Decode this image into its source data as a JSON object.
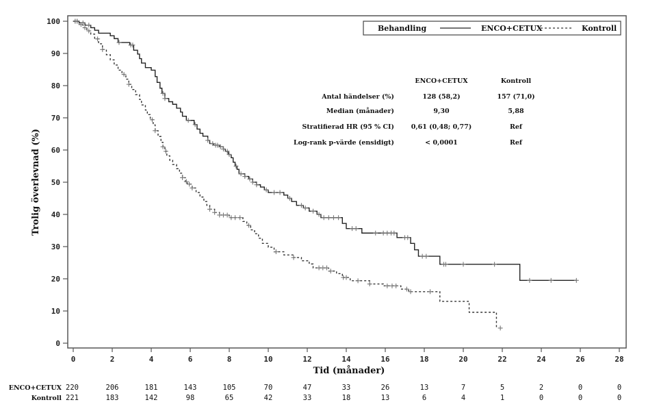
{
  "chart_data": {
    "type": "line",
    "subtype": "kaplan-meier",
    "title": "",
    "xlabel": "Tid (månader)",
    "ylabel": "Trolig överlevnad (%)",
    "xlim": [
      0,
      28
    ],
    "ylim": [
      0,
      100
    ],
    "xticks": [
      0,
      2,
      4,
      6,
      8,
      10,
      12,
      14,
      16,
      18,
      20,
      22,
      24,
      26,
      28
    ],
    "yticks": [
      0,
      10,
      20,
      30,
      40,
      50,
      60,
      70,
      80,
      90,
      100
    ],
    "grid": false,
    "legend": {
      "placement": "top-right",
      "title": "Behandling",
      "entries": [
        {
          "label": "ENCO+CETUX",
          "style": "solid"
        },
        {
          "label": "Kontroll",
          "style": "dashed"
        }
      ]
    },
    "series": [
      {
        "name": "ENCO+CETUX",
        "style": "solid",
        "color": "#222222",
        "steps": [
          [
            0,
            100
          ],
          [
            0.3,
            99.5
          ],
          [
            0.6,
            98.8
          ],
          [
            0.9,
            98.0
          ],
          [
            1.1,
            97.2
          ],
          [
            1.3,
            96.3
          ],
          [
            1.9,
            95.5
          ],
          [
            2.1,
            94.6
          ],
          [
            2.3,
            93.4
          ],
          [
            2.9,
            92.6
          ],
          [
            3.1,
            91.0
          ],
          [
            3.3,
            89.8
          ],
          [
            3.4,
            88.4
          ],
          [
            3.5,
            87.0
          ],
          [
            3.7,
            85.6
          ],
          [
            4.0,
            84.8
          ],
          [
            4.2,
            82.8
          ],
          [
            4.3,
            81.0
          ],
          [
            4.45,
            79.2
          ],
          [
            4.55,
            77.6
          ],
          [
            4.7,
            76.0
          ],
          [
            4.9,
            75.0
          ],
          [
            5.1,
            74.2
          ],
          [
            5.3,
            73.0
          ],
          [
            5.5,
            71.8
          ],
          [
            5.6,
            70.5
          ],
          [
            5.8,
            69.2
          ],
          [
            6.2,
            67.9
          ],
          [
            6.35,
            66.5
          ],
          [
            6.5,
            65.2
          ],
          [
            6.65,
            64.3
          ],
          [
            6.9,
            63.0
          ],
          [
            7.0,
            62.0
          ],
          [
            7.2,
            61.5
          ],
          [
            7.5,
            61.0
          ],
          [
            7.7,
            60.3
          ],
          [
            7.8,
            59.6
          ],
          [
            7.95,
            58.6
          ],
          [
            8.1,
            57.6
          ],
          [
            8.2,
            56.2
          ],
          [
            8.3,
            55.0
          ],
          [
            8.4,
            54.0
          ],
          [
            8.5,
            52.6
          ],
          [
            8.8,
            51.8
          ],
          [
            9.0,
            51.0
          ],
          [
            9.2,
            50.0
          ],
          [
            9.4,
            49.2
          ],
          [
            9.6,
            48.5
          ],
          [
            9.8,
            47.6
          ],
          [
            10.0,
            46.8
          ],
          [
            10.8,
            46.0
          ],
          [
            11.0,
            45.0
          ],
          [
            11.2,
            44.0
          ],
          [
            11.45,
            42.8
          ],
          [
            11.8,
            42.0
          ],
          [
            12.1,
            41.0
          ],
          [
            12.5,
            40.0
          ],
          [
            12.7,
            39.0
          ],
          [
            13.8,
            37.2
          ],
          [
            14.0,
            35.6
          ],
          [
            14.8,
            34.2
          ],
          [
            16.6,
            32.8
          ],
          [
            17.3,
            31.0
          ],
          [
            17.5,
            29.0
          ],
          [
            17.7,
            27.0
          ],
          [
            18.8,
            24.5
          ],
          [
            22.9,
            19.5
          ],
          [
            25.8,
            19.5
          ]
        ],
        "censor_x": [
          0.1,
          0.2,
          0.5,
          0.8,
          2.35,
          2.95,
          3.05,
          4.6,
          4.7,
          5.9,
          6.25,
          6.9,
          7.15,
          7.3,
          7.4,
          7.55,
          7.7,
          7.9,
          8.0,
          8.35,
          8.6,
          8.8,
          9.05,
          9.2,
          9.4,
          9.9,
          10.3,
          10.6,
          11.1,
          11.7,
          11.9,
          12.3,
          12.6,
          12.85,
          13.1,
          13.35,
          13.6,
          14.3,
          14.5,
          15.5,
          15.9,
          16.1,
          16.3,
          16.45,
          17.0,
          17.15,
          17.9,
          18.1,
          19.0,
          19.1,
          20.0,
          21.6,
          23.4,
          24.5,
          25.8
        ]
      },
      {
        "name": "Kontroll",
        "style": "dashed",
        "color": "#333333",
        "steps": [
          [
            0,
            100
          ],
          [
            0.3,
            99.0
          ],
          [
            0.5,
            98.0
          ],
          [
            0.7,
            97.0
          ],
          [
            0.9,
            96.0
          ],
          [
            1.1,
            94.5
          ],
          [
            1.3,
            93.0
          ],
          [
            1.5,
            91.2
          ],
          [
            1.7,
            89.6
          ],
          [
            1.9,
            88.0
          ],
          [
            2.1,
            86.4
          ],
          [
            2.3,
            84.8
          ],
          [
            2.5,
            83.5
          ],
          [
            2.7,
            82.0
          ],
          [
            2.85,
            80.4
          ],
          [
            3.0,
            78.8
          ],
          [
            3.2,
            77.2
          ],
          [
            3.4,
            75.7
          ],
          [
            3.5,
            74.0
          ],
          [
            3.7,
            72.4
          ],
          [
            3.8,
            71.0
          ],
          [
            3.95,
            69.4
          ],
          [
            4.1,
            67.8
          ],
          [
            4.2,
            66.0
          ],
          [
            4.35,
            64.2
          ],
          [
            4.5,
            62.4
          ],
          [
            4.6,
            61.0
          ],
          [
            4.7,
            59.6
          ],
          [
            4.8,
            58.2
          ],
          [
            4.95,
            56.8
          ],
          [
            5.1,
            55.5
          ],
          [
            5.3,
            54.2
          ],
          [
            5.45,
            52.8
          ],
          [
            5.6,
            51.4
          ],
          [
            5.75,
            50.2
          ],
          [
            5.85,
            49.4
          ],
          [
            6.1,
            48.2
          ],
          [
            6.3,
            46.8
          ],
          [
            6.5,
            45.4
          ],
          [
            6.7,
            44.0
          ],
          [
            6.85,
            42.8
          ],
          [
            7.0,
            41.6
          ],
          [
            7.25,
            40.6
          ],
          [
            7.5,
            39.8
          ],
          [
            8.0,
            39.0
          ],
          [
            8.7,
            37.8
          ],
          [
            8.9,
            36.6
          ],
          [
            9.1,
            35.2
          ],
          [
            9.3,
            34.0
          ],
          [
            9.5,
            32.6
          ],
          [
            9.7,
            31.0
          ],
          [
            10.0,
            29.8
          ],
          [
            10.3,
            28.4
          ],
          [
            10.8,
            27.4
          ],
          [
            11.3,
            26.6
          ],
          [
            11.7,
            25.6
          ],
          [
            12.1,
            24.6
          ],
          [
            12.3,
            23.4
          ],
          [
            13.1,
            22.4
          ],
          [
            13.5,
            21.6
          ],
          [
            13.8,
            20.4
          ],
          [
            14.2,
            19.4
          ],
          [
            15.2,
            18.4
          ],
          [
            15.9,
            17.8
          ],
          [
            16.8,
            16.8
          ],
          [
            17.2,
            16.0
          ],
          [
            18.8,
            13.0
          ],
          [
            20.3,
            9.6
          ],
          [
            21.7,
            4.7
          ]
        ],
        "censor_x": [
          0.1,
          0.2,
          0.4,
          0.6,
          0.8,
          1.25,
          1.5,
          2.6,
          2.85,
          4.05,
          4.2,
          4.6,
          4.75,
          5.6,
          5.8,
          5.95,
          6.1,
          7.0,
          7.25,
          7.5,
          7.7,
          7.9,
          8.1,
          8.3,
          8.55,
          9.0,
          10.4,
          11.3,
          12.6,
          12.8,
          13.0,
          13.2,
          13.85,
          14.0,
          14.6,
          15.2,
          16.1,
          16.35,
          16.55,
          17.1,
          17.3,
          18.3,
          21.9
        ]
      }
    ],
    "stats_table": {
      "columns": [
        "ENCO+CETUX",
        "Kontroll"
      ],
      "rows": [
        {
          "label": "Antal händelser (%)",
          "values": [
            "128 (58,2)",
            "157 (71,0)"
          ]
        },
        {
          "label": "Median (månader)",
          "values": [
            "9,30",
            "5,88"
          ]
        },
        {
          "label": "Stratifierad HR (95 % CI)",
          "values": [
            "0,61 (0,48; 0,77)",
            "Ref"
          ]
        },
        {
          "label": "Log-rank p-värde (ensidigt)",
          "values": [
            "< 0,0001",
            "Ref"
          ]
        }
      ]
    },
    "at_risk": {
      "times": [
        0,
        2,
        4,
        6,
        8,
        10,
        12,
        14,
        16,
        18,
        20,
        22,
        24,
        26,
        28
      ],
      "rows": [
        {
          "label": "ENCO+CETUX",
          "values": [
            220,
            206,
            181,
            143,
            105,
            70,
            47,
            33,
            26,
            13,
            7,
            5,
            2,
            0,
            0
          ]
        },
        {
          "label": "Kontroll",
          "values": [
            221,
            183,
            142,
            98,
            65,
            42,
            33,
            18,
            13,
            6,
            4,
            1,
            0,
            0,
            0
          ]
        }
      ]
    }
  }
}
